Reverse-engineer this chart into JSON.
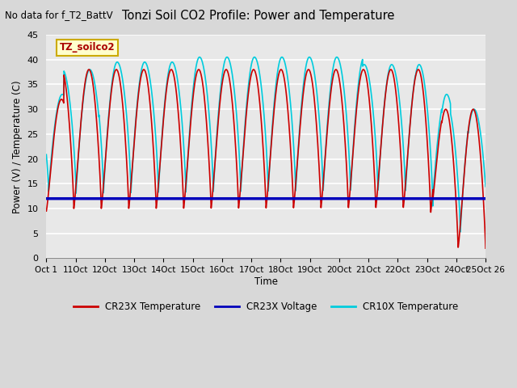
{
  "title": "Tonzi Soil CO2 Profile: Power and Temperature",
  "subtitle": "No data for f_T2_BattV",
  "ylabel": "Power (V) / Temperature (C)",
  "xlabel": "Time",
  "ylim": [
    0,
    45
  ],
  "bg_color": "#d8d8d8",
  "plot_bg_color": "#e8e8e8",
  "grid_color": "#ffffff",
  "voltage_value": 12.0,
  "voltage_color": "#0000bb",
  "cr23x_temp_color": "#cc0000",
  "cr10x_temp_color": "#00ccdd",
  "legend_label_voltage": "CR23X Voltage",
  "legend_label_cr23x": "CR23X Temperature",
  "legend_label_cr10x": "CR10X Temperature",
  "annotation_text": "TZ_soilco2",
  "n_days": 25,
  "n_cycles": 16,
  "x_tick_labels": [
    "Oct 1",
    "11Oct",
    "12Oct",
    "13Oct",
    "14Oct",
    "15Oct",
    "16Oct",
    "17Oct",
    "18Oct",
    "19Oct",
    "20Oct",
    "21Oct",
    "22Oct",
    "23Oct",
    "24Oct",
    "25Oct 26"
  ],
  "yticks": [
    0,
    5,
    10,
    15,
    20,
    25,
    30,
    35,
    40,
    45
  ]
}
